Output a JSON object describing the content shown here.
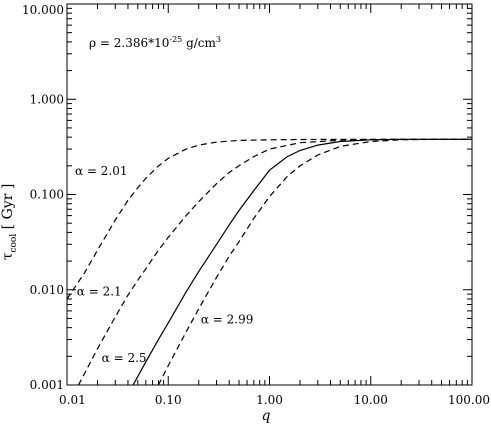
{
  "chart_data": {
    "type": "line",
    "xscale": "log",
    "yscale": "log",
    "xlim": [
      0.01,
      100
    ],
    "ylim": [
      0.001,
      10
    ],
    "xlabel": "q",
    "ylabel": "τcool [ Gyr ]",
    "ylabel_main": "τ",
    "ylabel_sub": "cool",
    "ylabel_unit": " [ Gyr ]",
    "xticks": [
      0.01,
      0.1,
      1,
      10,
      100
    ],
    "xtick_labels": [
      "0.01",
      "0.10",
      "1.00",
      "10.00",
      "100.00"
    ],
    "yticks": [
      0.001,
      0.01,
      0.1,
      1,
      10
    ],
    "ytick_labels": [
      "0.001",
      "0.010",
      "0.100",
      "1.000",
      "10.000"
    ],
    "grid": false,
    "legend": "none",
    "density_label": {
      "prefix": "ρ = 2.386*10",
      "exponent": "-25",
      "unit": " g/cm",
      "unit_exponent": "3"
    },
    "series": [
      {
        "label": "α = 2.01",
        "style": "dashed",
        "x": [
          0.01,
          0.015,
          0.02,
          0.03,
          0.04,
          0.05,
          0.06,
          0.08,
          0.1,
          0.15,
          0.2,
          0.3,
          0.5,
          1,
          2,
          5,
          10,
          20,
          100
        ],
        "y": [
          0.008,
          0.0152,
          0.026,
          0.054,
          0.087,
          0.118,
          0.148,
          0.199,
          0.24,
          0.3,
          0.33,
          0.355,
          0.37,
          0.375,
          0.378,
          0.38,
          0.38,
          0.38,
          0.38
        ]
      },
      {
        "label": "α = 2.1",
        "style": "dashed",
        "x": [
          0.013,
          0.02,
          0.03,
          0.04,
          0.05,
          0.06,
          0.08,
          0.1,
          0.15,
          0.2,
          0.3,
          0.4,
          0.5,
          0.7,
          1,
          2,
          5,
          10,
          20,
          100
        ],
        "y": [
          0.001,
          0.0024,
          0.0052,
          0.0088,
          0.0126,
          0.0166,
          0.026,
          0.0355,
          0.06,
          0.084,
          0.13,
          0.17,
          0.2,
          0.25,
          0.3,
          0.35,
          0.372,
          0.378,
          0.38,
          0.38
        ]
      },
      {
        "label": "α = 2.5",
        "style": "solid",
        "x": [
          0.045,
          0.06,
          0.08,
          0.1,
          0.15,
          0.2,
          0.3,
          0.4,
          0.5,
          0.7,
          1,
          1.5,
          2,
          3,
          5,
          10,
          20,
          100
        ],
        "y": [
          0.001,
          0.00175,
          0.003,
          0.0045,
          0.0095,
          0.0155,
          0.03,
          0.048,
          0.068,
          0.11,
          0.18,
          0.25,
          0.29,
          0.33,
          0.36,
          0.375,
          0.38,
          0.38
        ]
      },
      {
        "label": "α = 2.99",
        "style": "dashed",
        "x": [
          0.08,
          0.1,
          0.15,
          0.2,
          0.3,
          0.4,
          0.5,
          0.7,
          1,
          1.5,
          2,
          3,
          5,
          10,
          20,
          50,
          100
        ],
        "y": [
          0.001,
          0.0016,
          0.0036,
          0.0063,
          0.0135,
          0.0225,
          0.032,
          0.056,
          0.095,
          0.155,
          0.2,
          0.26,
          0.32,
          0.36,
          0.375,
          0.38,
          0.38
        ]
      }
    ]
  }
}
